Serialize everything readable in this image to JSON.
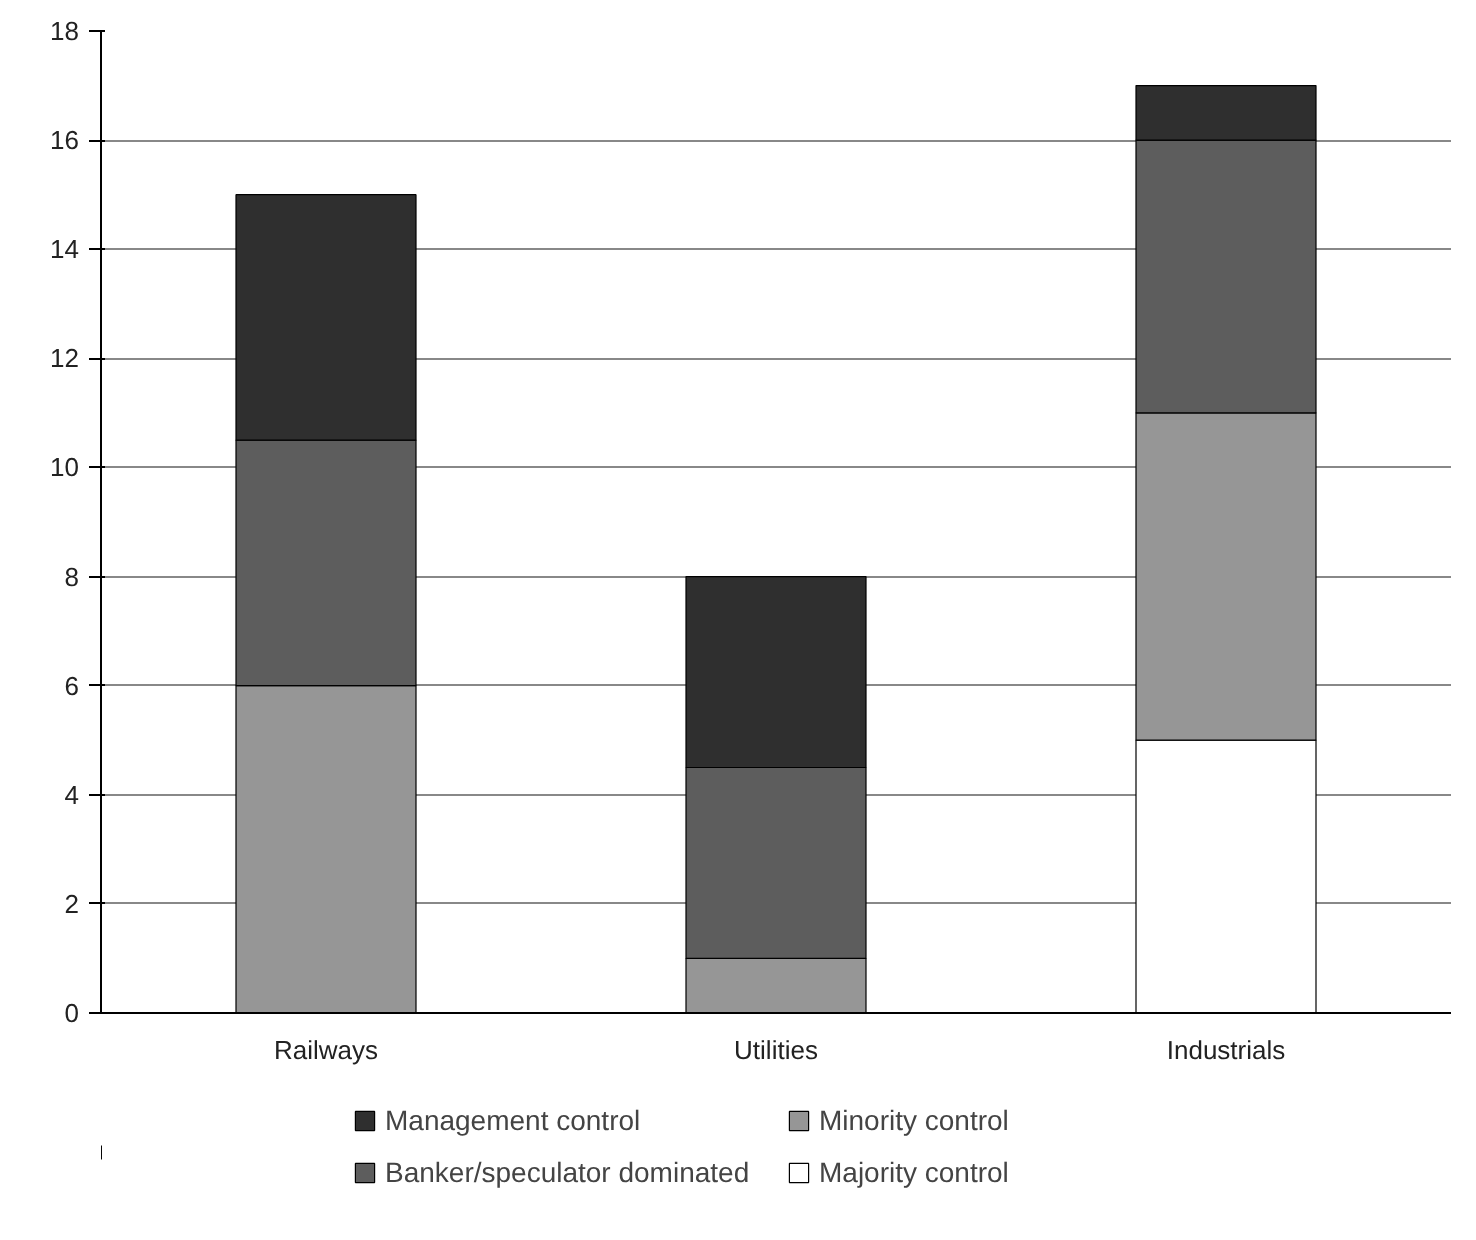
{
  "chart_data": {
    "type": "bar",
    "stacked": true,
    "categories": [
      "Railways",
      "Utilities",
      "Industrials"
    ],
    "series": [
      {
        "name": "Majority control",
        "color": "#ffffff",
        "values": [
          0,
          0,
          5
        ]
      },
      {
        "name": "Minority control",
        "color": "#969696",
        "values": [
          6,
          1,
          6
        ]
      },
      {
        "name": "Banker/speculator dominated",
        "color": "#5d5d5d",
        "values": [
          4.5,
          3.5,
          5
        ]
      },
      {
        "name": "Management control",
        "color": "#2f2f2f",
        "values": [
          4.5,
          3.5,
          1
        ]
      }
    ],
    "ylim": [
      0,
      18
    ],
    "yticks": [
      0,
      2,
      4,
      6,
      8,
      10,
      12,
      14,
      16,
      18
    ],
    "grid": "y",
    "legend": "bottom"
  }
}
